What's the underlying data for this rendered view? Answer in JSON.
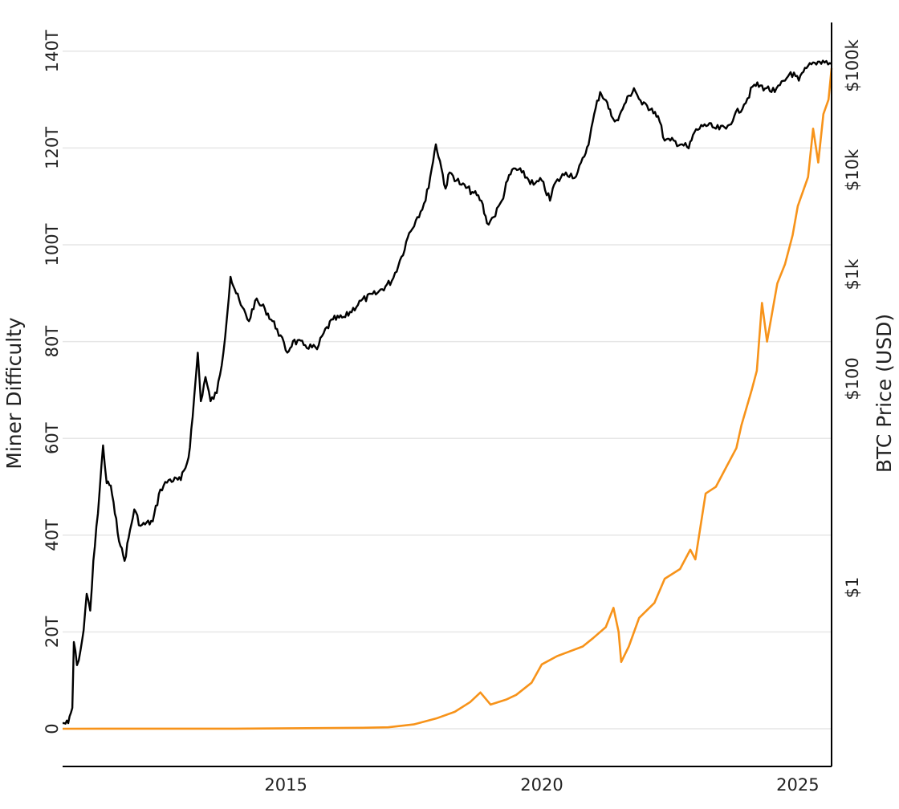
{
  "chart_data": {
    "type": "line",
    "title": "",
    "xlabel": "",
    "x_ticks": [
      2015,
      2020,
      2025
    ],
    "xlim": [
      2010.64,
      2025.66
    ],
    "left_axis": {
      "label": "Miner Difficulty",
      "scale": "linear",
      "ylim": [
        -7.5,
        146
      ],
      "ticks": [
        0,
        20,
        40,
        60,
        80,
        100,
        120,
        140
      ],
      "tick_labels": [
        "0",
        "20T",
        "40T",
        "60T",
        "80T",
        "100T",
        "120T",
        "140T"
      ]
    },
    "right_axis": {
      "label": "BTC Price (USD)",
      "scale": "log",
      "ticks": [
        1,
        100,
        1000,
        10000,
        100000
      ],
      "tick_labels": [
        "$1",
        "$100",
        "$1k",
        "$10k",
        "$100k"
      ]
    },
    "grid": "horizontal",
    "series": [
      {
        "name": "Miner Difficulty",
        "axis": "left",
        "unit": "T",
        "color": "#f7931a",
        "x": [
          2010.64,
          2014.0,
          2016.5,
          2017.0,
          2017.5,
          2017.96,
          2018.3,
          2018.6,
          2018.8,
          2019.0,
          2019.3,
          2019.5,
          2019.8,
          2020.0,
          2020.3,
          2020.5,
          2020.8,
          2021.0,
          2021.25,
          2021.4,
          2021.5,
          2021.55,
          2021.7,
          2021.9,
          2022.2,
          2022.4,
          2022.7,
          2022.9,
          2023.0,
          2023.2,
          2023.4,
          2023.6,
          2023.8,
          2023.9,
          2024.1,
          2024.2,
          2024.3,
          2024.4,
          2024.5,
          2024.6,
          2024.75,
          2024.9,
          2025.0,
          2025.1,
          2025.2,
          2025.3,
          2025.4,
          2025.5,
          2025.6,
          2025.66
        ],
        "values": [
          0,
          0.01,
          0.2,
          0.3,
          0.9,
          2.2,
          3.5,
          5.5,
          7.5,
          5.0,
          6.0,
          7.0,
          9.5,
          13.3,
          15,
          15.8,
          17,
          18.7,
          21,
          25,
          20,
          13.8,
          17,
          22.9,
          26,
          31,
          33,
          37,
          35,
          48.6,
          50,
          54,
          58,
          62.7,
          70,
          74,
          88,
          80,
          86,
          92,
          96,
          102,
          108,
          111,
          114,
          124,
          117,
          127,
          130,
          136.5
        ]
      },
      {
        "name": "BTC Price (USD)",
        "axis": "right",
        "color": "#000000",
        "x": [
          2010.64,
          2010.75,
          2010.83,
          2010.86,
          2010.92,
          2010.99,
          2011.05,
          2011.11,
          2011.18,
          2011.24,
          2011.33,
          2011.43,
          2011.5,
          2011.58,
          2011.66,
          2011.77,
          2011.85,
          2011.93,
          2012.04,
          2012.16,
          2012.4,
          2012.55,
          2012.71,
          2012.95,
          2013.1,
          2013.18,
          2013.28,
          2013.34,
          2013.43,
          2013.53,
          2013.65,
          2013.78,
          2013.92,
          2014.0,
          2014.12,
          2014.28,
          2014.4,
          2014.59,
          2014.83,
          2015.03,
          2015.14,
          2015.38,
          2015.61,
          2015.74,
          2015.92,
          2016.16,
          2016.47,
          2016.79,
          2017.07,
          2017.26,
          2017.41,
          2017.57,
          2017.73,
          2017.85,
          2017.93,
          2018.01,
          2018.12,
          2018.2,
          2018.43,
          2018.67,
          2018.82,
          2018.93,
          2019.06,
          2019.22,
          2019.33,
          2019.45,
          2019.61,
          2019.84,
          2020.0,
          2020.16,
          2020.24,
          2020.47,
          2020.67,
          2020.83,
          2020.94,
          2021.05,
          2021.14,
          2021.25,
          2021.36,
          2021.49,
          2021.61,
          2021.8,
          2021.96,
          2022.15,
          2022.27,
          2022.4,
          2022.51,
          2022.74,
          2022.87,
          2022.98,
          2023.18,
          2023.4,
          2023.6,
          2023.76,
          2023.95,
          2024.15,
          2024.39,
          2024.55,
          2024.75,
          2024.86,
          2025.02,
          2025.17,
          2025.33,
          2025.49,
          2025.66
        ],
        "values": [
          0.05,
          0.05,
          0.07,
          0.3,
          0.18,
          0.25,
          0.39,
          0.87,
          0.6,
          1.8,
          5.1,
          23,
          10,
          9.5,
          5.1,
          2.5,
          1.8,
          3,
          5.6,
          3.9,
          4.3,
          8.7,
          10.7,
          10.7,
          17.6,
          43,
          178,
          61,
          104,
          61,
          73,
          178,
          950,
          725,
          510,
          357,
          560,
          470,
          300,
          178,
          230,
          210,
          192,
          275,
          370,
          390,
          560,
          665,
          870,
          1480,
          2500,
          3550,
          5100,
          10400,
          17700,
          12300,
          6650,
          9500,
          7250,
          6050,
          5100,
          3100,
          3550,
          5100,
          7950,
          10400,
          9500,
          7250,
          7950,
          5100,
          7250,
          9500,
          8700,
          13500,
          21000,
          39000,
          56000,
          47000,
          33000,
          30000,
          42500,
          61000,
          42500,
          39000,
          33000,
          19200,
          19200,
          17700,
          16200,
          23000,
          27500,
          25000,
          25000,
          33000,
          42500,
          66000,
          61000,
          56000,
          72000,
          87000,
          72000,
          95000,
          107000,
          112000,
          104000
        ]
      }
    ]
  }
}
